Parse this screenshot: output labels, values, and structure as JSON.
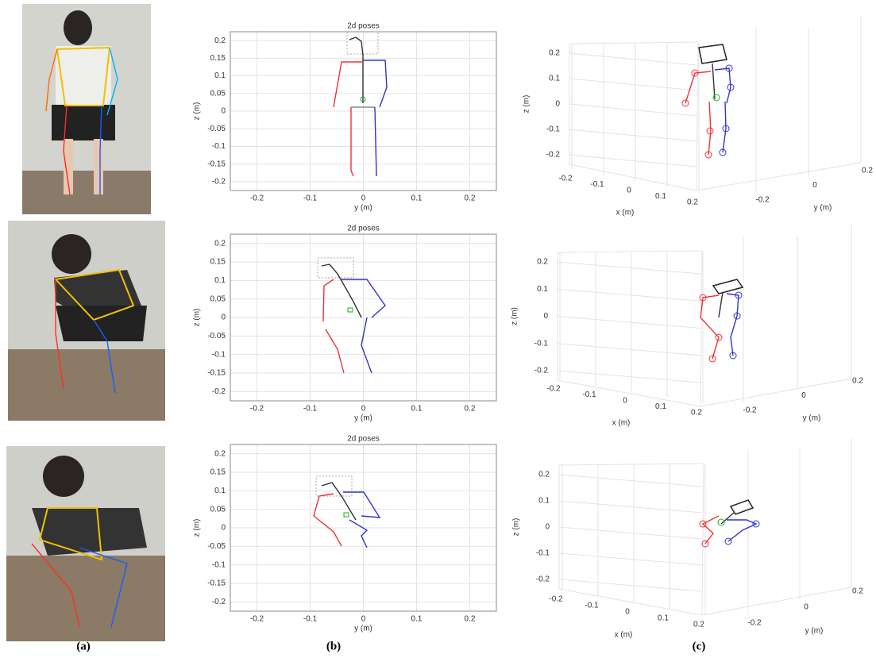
{
  "rows": [
    {
      "plot2d": {
        "title": "2d poses",
        "xlabel": "y (m)",
        "ylabel": "z (m)",
        "xlim": [
          -0.25,
          0.25
        ],
        "ylim": [
          -0.225,
          0.225
        ],
        "xticks": [
          -0.2,
          -0.1,
          0,
          0.1,
          0.2
        ],
        "yticks": [
          0.2,
          0.15,
          0.1,
          0.05,
          0,
          -0.05,
          -0.1,
          -0.15,
          -0.2
        ]
      },
      "plot3d": {
        "xlabel": "x (m)",
        "ylabel": "y (m)",
        "zlabel": "z (m)",
        "xticks": [
          -0.2,
          -0.1,
          0,
          0.1,
          0.2
        ],
        "yticks": [
          -0.2,
          0,
          0.2
        ],
        "zticks": [
          0.2,
          0.1,
          0,
          -0.1,
          -0.2
        ]
      }
    },
    {
      "plot2d": {
        "title": "2d poses",
        "xlabel": "y (m)",
        "ylabel": "z (m)",
        "xlim": [
          -0.25,
          0.25
        ],
        "ylim": [
          -0.225,
          0.225
        ],
        "xticks": [
          -0.2,
          -0.1,
          0,
          0.1,
          0.2
        ],
        "yticks": [
          0.2,
          0.15,
          0.1,
          0.05,
          0,
          -0.05,
          -0.1,
          -0.15,
          -0.2
        ]
      },
      "plot3d": {
        "xlabel": "x (m)",
        "ylabel": "y (m)",
        "zlabel": "z (m)",
        "xticks": [
          -0.2,
          -0.1,
          0,
          0.1,
          0.2
        ],
        "yticks": [
          -0.2,
          0,
          0.2
        ],
        "zticks": [
          0.2,
          0.1,
          0,
          -0.1,
          -0.2
        ]
      }
    },
    {
      "plot2d": {
        "title": "2d poses",
        "xlabel": "y (m)",
        "ylabel": "z (m)",
        "xlim": [
          -0.25,
          0.25
        ],
        "ylim": [
          -0.225,
          0.225
        ],
        "xticks": [
          -0.2,
          -0.1,
          0,
          0.1,
          0.2
        ],
        "yticks": [
          0.2,
          0.15,
          0.1,
          0.05,
          0,
          -0.05,
          -0.1,
          -0.15,
          -0.2
        ]
      },
      "plot3d": {
        "xlabel": "x (m)",
        "ylabel": "y (m)",
        "zlabel": "z (m)",
        "xticks": [
          -0.2,
          -0.1,
          0,
          0.1,
          0.2
        ],
        "yticks": [
          -0.2,
          0,
          0.2
        ],
        "zticks": [
          0.2,
          0.1,
          0,
          -0.1,
          -0.2
        ]
      }
    }
  ],
  "captions": [
    "(a)",
    "(b)",
    "(c)"
  ]
}
